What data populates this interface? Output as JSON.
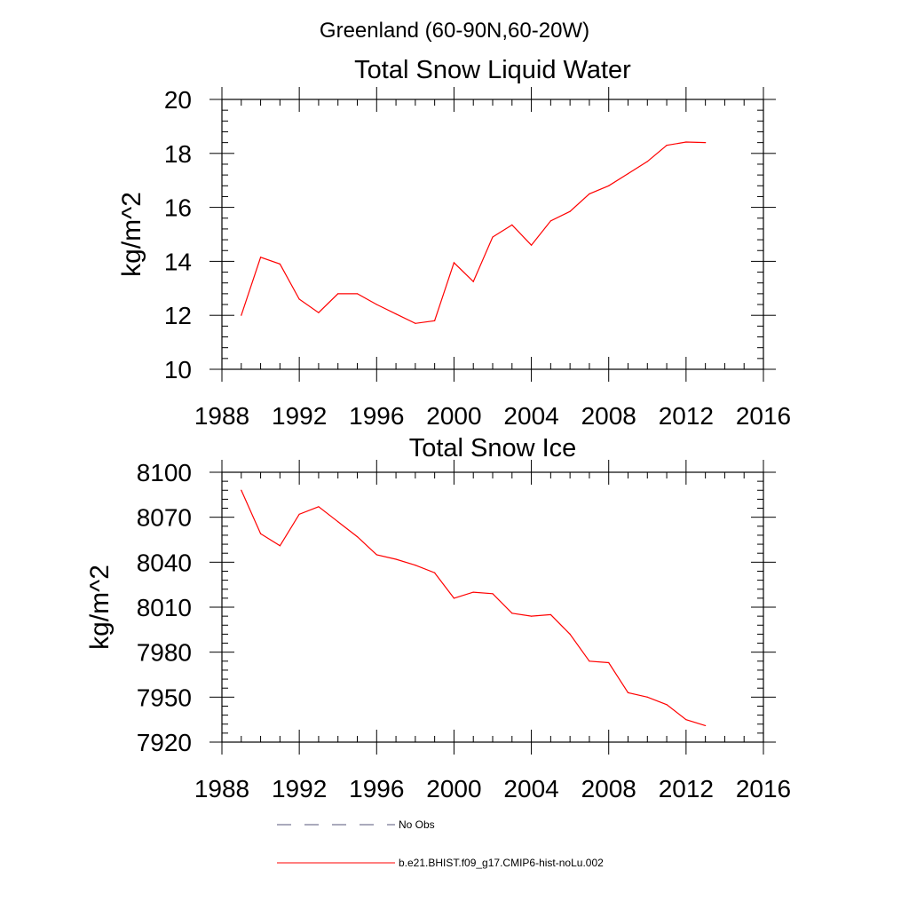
{
  "figure": {
    "title": "Greenland (60-90N,60-20W)",
    "colors": {
      "model_line": "#ff0000",
      "obs_line": "#55557a",
      "axes": "#000000"
    }
  },
  "chart_data": [
    {
      "type": "line",
      "title": "Total Snow Liquid Water",
      "xlabel": "",
      "ylabel": "kg/m^2",
      "xlim": [
        1988,
        2016
      ],
      "ylim": [
        10,
        20
      ],
      "xticks": [
        1988,
        1992,
        1996,
        2000,
        2004,
        2008,
        2012,
        2016
      ],
      "yticks": [
        10,
        12,
        14,
        16,
        18,
        20
      ],
      "grid": false,
      "series": [
        {
          "name": "b.e21.BHIST.f09_g17.CMIP6-hist-noLu.002",
          "color": "#ff0000",
          "x": [
            1989,
            1990,
            1991,
            1992,
            1993,
            1994,
            1995,
            1996,
            1997,
            1998,
            1999,
            2000,
            2001,
            2002,
            2003,
            2004,
            2005,
            2006,
            2007,
            2008,
            2009,
            2010,
            2011,
            2012,
            2013
          ],
          "y": [
            12.0,
            14.15,
            13.9,
            12.6,
            12.1,
            12.8,
            12.8,
            12.4,
            12.05,
            11.7,
            11.8,
            13.95,
            13.25,
            14.9,
            15.35,
            14.6,
            15.5,
            15.85,
            16.5,
            16.8,
            17.25,
            17.7,
            18.3,
            18.42,
            18.4
          ]
        }
      ]
    },
    {
      "type": "line",
      "title": "Total Snow Ice",
      "xlabel": "",
      "ylabel": "kg/m^2",
      "xlim": [
        1988,
        2016
      ],
      "ylim": [
        7920,
        8100
      ],
      "xticks": [
        1988,
        1992,
        1996,
        2000,
        2004,
        2008,
        2012,
        2016
      ],
      "yticks": [
        7920,
        7950,
        7980,
        8010,
        8040,
        8070,
        8100
      ],
      "grid": false,
      "series": [
        {
          "name": "b.e21.BHIST.f09_g17.CMIP6-hist-noLu.002",
          "color": "#ff0000",
          "x": [
            1989,
            1990,
            1991,
            1992,
            1993,
            1994,
            1995,
            1996,
            1997,
            1998,
            1999,
            2000,
            2001,
            2002,
            2003,
            2004,
            2005,
            2006,
            2007,
            2008,
            2009,
            2010,
            2011,
            2012,
            2013
          ],
          "y": [
            8088,
            8059,
            8051,
            8072,
            8077,
            8067,
            8057,
            8045,
            8042,
            8038,
            8033,
            8016,
            8020,
            8019,
            8006,
            8004,
            8005,
            7992,
            7974,
            7973,
            7953,
            7950,
            7945,
            7935,
            7931
          ]
        }
      ]
    }
  ],
  "legend": {
    "position": "bottom",
    "items": [
      {
        "label": "No Obs",
        "style": "dashed",
        "color": "#55557a"
      },
      {
        "label": "b.e21.BHIST.f09_g17.CMIP6-hist-noLu.002",
        "style": "solid",
        "color": "#ff0000"
      }
    ]
  }
}
